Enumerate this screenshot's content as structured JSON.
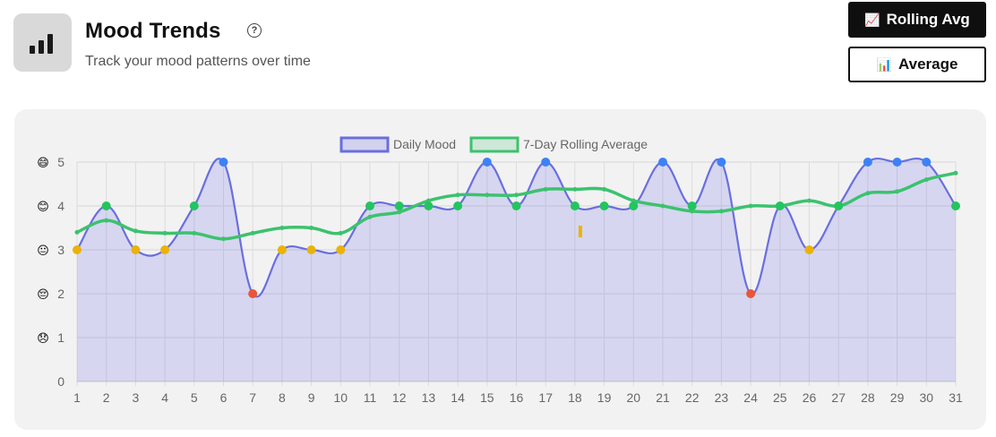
{
  "header": {
    "title": "Mood Trends",
    "subtitle": "Track your mood patterns over time",
    "help_icon": "help-circle-icon",
    "app_icon": "bar-chart-icon"
  },
  "buttons": {
    "rolling_label": "Rolling Avg",
    "rolling_icon": "line-chart-icon",
    "average_label": "Average",
    "average_icon": "bar-chart-emoji-icon"
  },
  "chart_data": {
    "type": "line",
    "title": "",
    "xlabel": "",
    "ylabel": "",
    "ylim": [
      0,
      5
    ],
    "grid": true,
    "legend_position": "top-center",
    "x": [
      "1",
      "2",
      "3",
      "4",
      "5",
      "6",
      "7",
      "8",
      "9",
      "10",
      "11",
      "12",
      "13",
      "14",
      "15",
      "16",
      "17",
      "18",
      "19",
      "20",
      "21",
      "22",
      "23",
      "24",
      "25",
      "26",
      "27",
      "28",
      "29",
      "30",
      "31"
    ],
    "y_ticks": [
      "0",
      "1",
      "2",
      "3",
      "4",
      "5"
    ],
    "y_tick_emojis": [
      "",
      "😞",
      "😔",
      "😐",
      "😊",
      "😄"
    ],
    "series": [
      {
        "name": "Daily Mood",
        "color": "#6a6ee0",
        "fill": "rgba(115,115,230,0.22)",
        "values": [
          3,
          4,
          3,
          3,
          4,
          5,
          2,
          3,
          3,
          3,
          4,
          4,
          4,
          4,
          5,
          4,
          5,
          4,
          4,
          4,
          5,
          4,
          5,
          2,
          4,
          3,
          4,
          5,
          5,
          5,
          4
        ]
      },
      {
        "name": "7-Day Rolling Average",
        "color": "#3cc26e",
        "fill": "rgba(60,194,110,0.15)",
        "values": [
          3.4,
          3.67,
          3.43,
          3.38,
          3.38,
          3.25,
          3.38,
          3.5,
          3.5,
          3.38,
          3.75,
          3.86,
          4.12,
          4.25,
          4.25,
          4.25,
          4.38,
          4.38,
          4.38,
          4.12,
          4.0,
          3.88,
          3.88,
          4.0,
          4.0,
          4.12,
          4.0,
          4.29,
          4.33,
          4.6,
          4.75
        ]
      }
    ],
    "point_colors": {
      "2": "#e8553a",
      "3": "#eab308",
      "4": "#22c55e",
      "5": "#3b82f6"
    }
  }
}
